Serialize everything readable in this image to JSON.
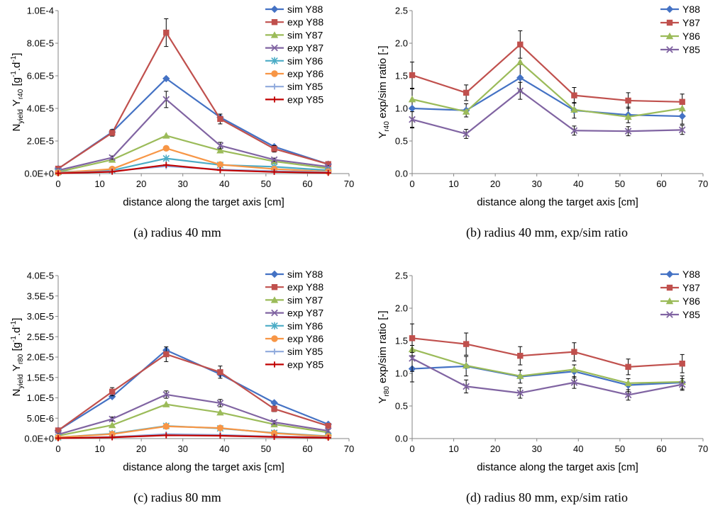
{
  "charts": [
    {
      "type": "line",
      "caption": "(a) radius 40 mm",
      "xlabel": "distance along the target axis [cm]",
      "ylabel": "N_yield Y_r40 [g^-1.d^-1]",
      "ylabel_parts": {
        "main": "N",
        "sub1": "yield",
        "mid": " Y",
        "sub2": "r40",
        "tail": " [g",
        "sup1": "-1",
        "tail2": ".d",
        "sup2": "-1",
        "end": "]"
      },
      "xlim": [
        0,
        70
      ],
      "ylim": [
        0,
        0.0001
      ],
      "xticks": [
        "0",
        "10",
        "20",
        "30",
        "40",
        "50",
        "60",
        "70"
      ],
      "yticks": [
        "0.0E+0",
        "2.0E-5",
        "4.0E-5",
        "6.0E-5",
        "8.0E-5",
        "1.0E-4"
      ],
      "ytick_values": [
        0,
        2e-05,
        4e-05,
        6e-05,
        8e-05,
        0.0001
      ],
      "x": [
        0,
        13,
        26,
        39,
        52,
        65
      ],
      "legend_position": "top-right",
      "series": [
        {
          "name": "sim Y88",
          "color": "#4472c4",
          "marker": "diamond",
          "values": [
            3e-06,
            2.55e-05,
            5.83e-05,
            3.45e-05,
            1.65e-05,
            5.8e-06
          ]
        },
        {
          "name": "exp Y88",
          "color": "#c0504d",
          "marker": "square",
          "values": [
            3e-06,
            2.5e-05,
            8.65e-05,
            3.35e-05,
            1.52e-05,
            5.8e-06
          ],
          "errors": [
            1.5e-06,
            2e-06,
            8.5e-06,
            3e-06,
            2e-06,
            1e-06
          ]
        },
        {
          "name": "sim Y87",
          "color": "#9bbb59",
          "marker": "triangle",
          "values": [
            1e-06,
            8.5e-06,
            2.33e-05,
            1.42e-05,
            7.5e-06,
            3.2e-06
          ]
        },
        {
          "name": "exp Y87",
          "color": "#8064a2",
          "marker": "x",
          "values": [
            2e-06,
            9.8e-06,
            4.55e-05,
            1.72e-05,
            8.5e-06,
            4.2e-06
          ],
          "errors": [
            1e-06,
            1e-06,
            5e-06,
            2e-06,
            1e-06,
            8e-07
          ]
        },
        {
          "name": "sim Y86",
          "color": "#4bacc6",
          "marker": "star",
          "values": [
            1e-06,
            2e-06,
            9.3e-06,
            5.3e-06,
            4.2e-06,
            2e-06
          ]
        },
        {
          "name": "exp Y86",
          "color": "#f79646",
          "marker": "circle",
          "values": [
            5e-07,
            2.8e-06,
            1.55e-05,
            5.5e-06,
            2.8e-06,
            1.2e-06
          ]
        },
        {
          "name": "sim Y85",
          "color": "#8faadc",
          "marker": "plus",
          "values": [
            3e-07,
            1.5e-06,
            4.5e-06,
            2.5e-06,
            1.5e-06,
            8e-07
          ]
        },
        {
          "name": "exp Y85",
          "color": "#c00000",
          "marker": "plus",
          "values": [
            2e-07,
            1.1e-06,
            5.3e-06,
            2.1e-06,
            1e-06,
            4e-07
          ]
        }
      ]
    },
    {
      "type": "line",
      "caption": "(b) radius 40 mm, exp/sim ratio",
      "xlabel": "distance along the target axis [cm]",
      "ylabel": "Y_r40 exp/sim ratio [-]",
      "ylabel_parts": {
        "main": "Y",
        "sub1": "r40",
        "mid": " exp/sim ratio [-]"
      },
      "xlim": [
        0,
        70
      ],
      "ylim": [
        0,
        2.5
      ],
      "xticks": [
        "0",
        "10",
        "20",
        "30",
        "40",
        "50",
        "60",
        "70"
      ],
      "yticks": [
        "0.0",
        "0.5",
        "1.0",
        "1.5",
        "2.0",
        "2.5"
      ],
      "ytick_values": [
        0,
        0.5,
        1.0,
        1.5,
        2.0,
        2.5
      ],
      "x": [
        0,
        13,
        26,
        39,
        52,
        65
      ],
      "legend_position": "top-right",
      "series": [
        {
          "name": "Y88",
          "color": "#4472c4",
          "marker": "diamond",
          "values": [
            1.0,
            0.97,
            1.47,
            0.97,
            0.9,
            0.88
          ],
          "errors": [
            0.3,
            0.1,
            0.2,
            0.12,
            0.12,
            0.12
          ]
        },
        {
          "name": "Y87",
          "color": "#c0504d",
          "marker": "square",
          "values": [
            1.51,
            1.24,
            1.98,
            1.2,
            1.12,
            1.1
          ],
          "errors": [
            0.2,
            0.12,
            0.21,
            0.12,
            0.12,
            0.12
          ]
        },
        {
          "name": "Y86",
          "color": "#9bbb59",
          "marker": "triangle",
          "values": [
            1.14,
            0.95,
            1.71,
            0.98,
            0.87,
            1.0
          ]
        },
        {
          "name": "Y85",
          "color": "#8064a2",
          "marker": "x",
          "values": [
            0.83,
            0.61,
            1.27,
            0.66,
            0.65,
            0.67
          ],
          "errors": [
            0.12,
            0.07,
            0.13,
            0.07,
            0.07,
            0.07
          ]
        }
      ]
    },
    {
      "type": "line",
      "caption": "(c) radius 80 mm",
      "xlabel": "distance along the target axis [cm]",
      "ylabel": "N_yield Y_r80 [g^-1.d^-1]",
      "ylabel_parts": {
        "main": "N",
        "sub1": "yield",
        "mid": " Y",
        "sub2": "r80",
        "tail": " [g",
        "sup1": "-1",
        "tail2": ".d",
        "sup2": "-1",
        "end": "]"
      },
      "xlim": [
        0,
        70
      ],
      "ylim": [
        0,
        4e-05
      ],
      "xticks": [
        "0",
        "10",
        "20",
        "30",
        "40",
        "50",
        "60",
        "70"
      ],
      "yticks": [
        "0.0E+0",
        "5.0E-6",
        "1.0E-5",
        "1.5E-5",
        "2.0E-5",
        "2.5E-5",
        "3.0E-5",
        "3.5E-5",
        "4.0E-5"
      ],
      "ytick_values": [
        0,
        5e-06,
        1e-05,
        1.5e-05,
        2e-05,
        2.5e-05,
        3e-05,
        3.5e-05,
        4e-05
      ],
      "x": [
        0,
        13,
        26,
        39,
        52,
        65
      ],
      "legend_position": "top-right",
      "series": [
        {
          "name": "sim Y88",
          "color": "#4472c4",
          "marker": "diamond",
          "values": [
            2e-06,
            1.03e-05,
            2.17e-05,
            1.58e-05,
            8.8e-06,
            3.5e-06
          ]
        },
        {
          "name": "exp Y88",
          "color": "#c0504d",
          "marker": "square",
          "values": [
            2e-06,
            1.15e-05,
            2.07e-05,
            1.63e-05,
            7.3e-06,
            3.1e-06
          ],
          "errors": [
            5e-07,
            1e-06,
            1.8e-06,
            1.5e-06,
            7e-07,
            4e-07
          ]
        },
        {
          "name": "sim Y87",
          "color": "#9bbb59",
          "marker": "triangle",
          "values": [
            7e-07,
            3.3e-06,
            8.4e-06,
            6.4e-06,
            3.5e-06,
            1.5e-06
          ]
        },
        {
          "name": "exp Y87",
          "color": "#8064a2",
          "marker": "x",
          "values": [
            1e-06,
            4.8e-06,
            1.08e-05,
            8.7e-06,
            4e-06,
            1.9e-06
          ],
          "errors": [
            3e-07,
            5e-07,
            9e-07,
            9e-07,
            4e-07,
            3e-07
          ]
        },
        {
          "name": "sim Y86",
          "color": "#4bacc6",
          "marker": "star",
          "values": [
            3e-07,
            1.2e-06,
            3.1e-06,
            2.5e-06,
            1.4e-06,
            6e-07
          ]
        },
        {
          "name": "exp Y86",
          "color": "#f79646",
          "marker": "circle",
          "values": [
            3e-07,
            1.1e-06,
            3e-06,
            2.6e-06,
            1.3e-06,
            5e-07
          ]
        },
        {
          "name": "sim Y85",
          "color": "#8faadc",
          "marker": "plus",
          "values": [
            1e-07,
            4e-07,
            1.1e-06,
            9e-07,
            5e-07,
            3e-07
          ]
        },
        {
          "name": "exp Y85",
          "color": "#c00000",
          "marker": "plus",
          "values": [
            1e-07,
            3e-07,
            8e-07,
            7e-07,
            4e-07,
            2e-07
          ]
        }
      ]
    },
    {
      "type": "line",
      "caption": "(d) radius 80 mm, exp/sim ratio",
      "xlabel": "distance along the target axis [cm]",
      "ylabel": "Y_r80 exp/sim ratio [-]",
      "ylabel_parts": {
        "main": "Y",
        "sub1": "r80",
        "mid": " exp/sim ratio [-]"
      },
      "xlim": [
        0,
        70
      ],
      "ylim": [
        0,
        2.5
      ],
      "xticks": [
        "0",
        "10",
        "20",
        "30",
        "40",
        "50",
        "60",
        "70"
      ],
      "yticks": [
        "0.0",
        "0.5",
        "1.0",
        "1.5",
        "2.0",
        "2.5"
      ],
      "ytick_values": [
        0,
        0.5,
        1.0,
        1.5,
        2.0,
        2.5
      ],
      "x": [
        0,
        13,
        26,
        39,
        52,
        65
      ],
      "legend_position": "top-right",
      "series": [
        {
          "name": "Y88",
          "color": "#4472c4",
          "marker": "diamond",
          "values": [
            1.07,
            1.11,
            0.95,
            1.03,
            0.82,
            0.86
          ],
          "errors": [
            0.2,
            0.15,
            0.1,
            0.1,
            0.1,
            0.1
          ]
        },
        {
          "name": "Y87",
          "color": "#c0504d",
          "marker": "square",
          "values": [
            1.54,
            1.45,
            1.27,
            1.33,
            1.1,
            1.15
          ],
          "errors": [
            0.22,
            0.17,
            0.14,
            0.14,
            0.12,
            0.14
          ]
        },
        {
          "name": "Y86",
          "color": "#9bbb59",
          "marker": "triangle",
          "values": [
            1.37,
            1.12,
            0.96,
            1.06,
            0.85,
            0.87
          ]
        },
        {
          "name": "Y85",
          "color": "#8064a2",
          "marker": "x",
          "values": [
            1.23,
            0.8,
            0.7,
            0.86,
            0.67,
            0.83
          ],
          "errors": [
            0.2,
            0.1,
            0.08,
            0.09,
            0.08,
            0.09
          ]
        }
      ]
    }
  ]
}
